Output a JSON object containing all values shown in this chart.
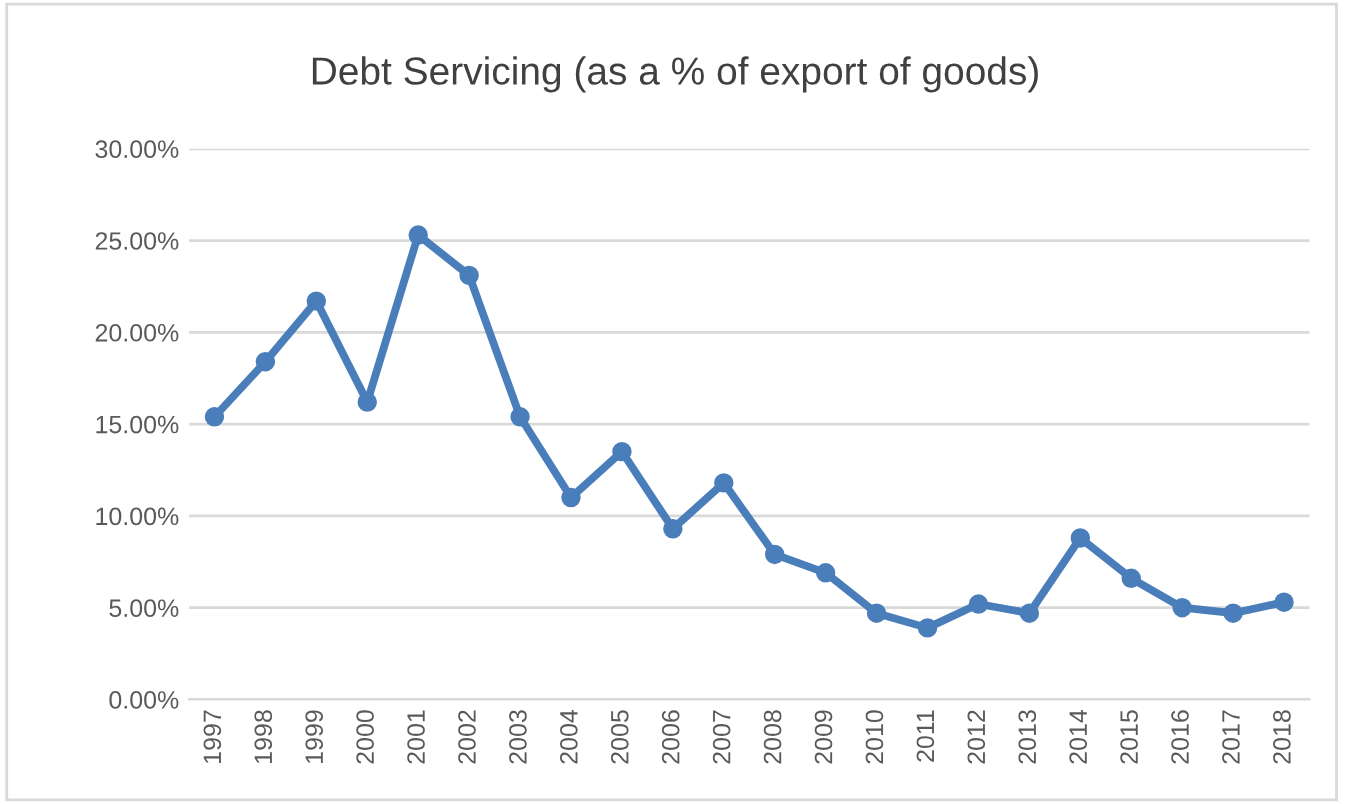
{
  "chart_data": {
    "type": "line",
    "title": "Debt Servicing (as a % of export of goods)",
    "categories": [
      "1997",
      "1998",
      "1999",
      "2000",
      "2001",
      "2002",
      "2003",
      "2004",
      "2005",
      "2006",
      "2007",
      "2008",
      "2009",
      "2010",
      "2011",
      "2012",
      "2013",
      "2014",
      "2015",
      "2016",
      "2017",
      "2018"
    ],
    "series": [
      {
        "color": "#4a7ebb",
        "values": [
          15.4,
          18.4,
          21.7,
          16.2,
          25.3,
          23.1,
          15.4,
          11.0,
          13.5,
          9.3,
          11.8,
          7.9,
          6.9,
          4.7,
          3.9,
          5.2,
          4.7,
          8.8,
          6.6,
          5.0,
          4.7,
          5.3
        ]
      }
    ],
    "ylim": [
      0,
      30
    ],
    "yticks": [
      {
        "value": 0,
        "label": "0.00%"
      },
      {
        "value": 5,
        "label": "5.00%"
      },
      {
        "value": 10,
        "label": "10.00%"
      },
      {
        "value": 15,
        "label": "15.00%"
      },
      {
        "value": 20,
        "label": "20.00%"
      },
      {
        "value": 25,
        "label": "25.00%"
      },
      {
        "value": 30,
        "label": "30.00%"
      }
    ],
    "grid": "y",
    "marker": "circle",
    "line_style": "solid",
    "legend": false
  }
}
